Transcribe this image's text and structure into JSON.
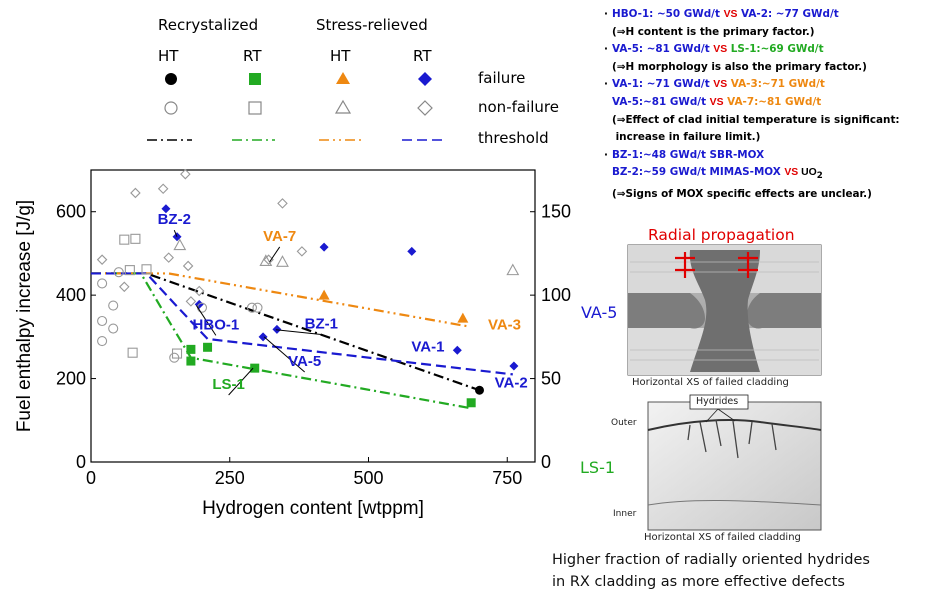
{
  "colors": {
    "black": "#000000",
    "green": "#22aa22",
    "orange": "#ee8811",
    "blue": "#1a1ad0",
    "red": "#e00000",
    "gray_open": "#999999"
  },
  "legend": {
    "group_recrystalized": "Recrystalized",
    "group_stress_relieved": "Stress-relieved",
    "col_ht_1": "HT",
    "col_rt_1": "RT",
    "col_ht_2": "HT",
    "col_rt_2": "RT",
    "row_failure": "failure",
    "row_non_failure": "non-failure",
    "row_threshold": "threshold"
  },
  "chart_data": {
    "type": "scatter",
    "xlabel": "Hydrogen content [wtppm]",
    "ylabel": "Fuel enthalpy increase [J/g]",
    "xlim": [
      0,
      800
    ],
    "ylim": [
      0,
      700
    ],
    "y2lim": [
      0,
      175
    ],
    "xticks": [
      "0",
      "250",
      "500",
      "750"
    ],
    "yticks": [
      "0",
      "200",
      "400",
      "600"
    ],
    "y2ticks": [
      "0",
      "50",
      "100",
      "150"
    ],
    "series": [
      {
        "name": "Recrystalized HT failure",
        "marker": "filled-circle",
        "color": "#000000",
        "points": [
          [
            700,
            172
          ]
        ]
      },
      {
        "name": "Recrystalized RT failure",
        "marker": "filled-square",
        "color": "#22aa22",
        "points": [
          [
            180,
            270
          ],
          [
            180,
            242
          ],
          [
            210,
            275
          ],
          [
            295,
            225
          ],
          [
            685,
            142
          ]
        ]
      },
      {
        "name": "Stress-relieved HT failure",
        "marker": "filled-triangle",
        "color": "#ee8811",
        "points": [
          [
            420,
            400
          ],
          [
            670,
            345
          ]
        ]
      },
      {
        "name": "Stress-relieved RT failure",
        "marker": "filled-diamond",
        "color": "#1a1ad0",
        "points": [
          [
            135,
            607
          ],
          [
            155,
            540
          ],
          [
            195,
            378
          ],
          [
            310,
            300
          ],
          [
            335,
            318
          ],
          [
            420,
            515
          ],
          [
            578,
            505
          ],
          [
            660,
            268
          ],
          [
            762,
            230
          ]
        ]
      },
      {
        "name": "Recrystalized HT non-failure",
        "marker": "open-circle",
        "color": "#999999",
        "points": [
          [
            20,
            428
          ],
          [
            20,
            338
          ],
          [
            20,
            290
          ],
          [
            40,
            375
          ],
          [
            40,
            320
          ],
          [
            50,
            455
          ],
          [
            150,
            250
          ],
          [
            200,
            370
          ],
          [
            290,
            370
          ],
          [
            300,
            370
          ]
        ]
      },
      {
        "name": "Recrystalized RT non-failure",
        "marker": "open-square",
        "color": "#999999",
        "points": [
          [
            60,
            533
          ],
          [
            80,
            535
          ],
          [
            70,
            460
          ],
          [
            100,
            462
          ],
          [
            75,
            262
          ],
          [
            155,
            260
          ]
        ]
      },
      {
        "name": "Stress-relieved HT non-failure",
        "marker": "open-triangle",
        "color": "#999999",
        "points": [
          [
            160,
            520
          ],
          [
            315,
            482
          ],
          [
            345,
            480
          ],
          [
            760,
            460
          ]
        ]
      },
      {
        "name": "Stress-relieved RT non-failure",
        "marker": "open-diamond",
        "color": "#999999",
        "points": [
          [
            80,
            645
          ],
          [
            130,
            655
          ],
          [
            170,
            690
          ],
          [
            140,
            490
          ],
          [
            175,
            470
          ],
          [
            180,
            385
          ],
          [
            195,
            410
          ],
          [
            320,
            485
          ],
          [
            345,
            620
          ],
          [
            380,
            505
          ],
          [
            20,
            485
          ],
          [
            60,
            420
          ]
        ]
      }
    ],
    "thresholds": [
      {
        "name": "Recrystalized HT threshold",
        "color": "#000000",
        "dash": "10 4 2 4",
        "points": [
          [
            0,
            452
          ],
          [
            100,
            452
          ],
          [
            700,
            172
          ]
        ]
      },
      {
        "name": "Recrystalized RT threshold",
        "color": "#22aa22",
        "dash": "10 4 2 4",
        "points": [
          [
            0,
            452
          ],
          [
            90,
            452
          ],
          [
            135,
            350
          ],
          [
            180,
            250
          ],
          [
            680,
            130
          ]
        ]
      },
      {
        "name": "Stress-relieved HT threshold",
        "color": "#ee8811",
        "dash": "10 4 2 4 2 4",
        "points": [
          [
            0,
            452
          ],
          [
            140,
            452
          ],
          [
            680,
            325
          ]
        ]
      },
      {
        "name": "Stress-relieved RT threshold",
        "color": "#1a1ad0",
        "dash": "10 5",
        "points": [
          [
            0,
            452
          ],
          [
            100,
            452
          ],
          [
            150,
            380
          ],
          [
            210,
            295
          ],
          [
            760,
            210
          ]
        ]
      }
    ],
    "annotations": [
      {
        "text": "BZ-2",
        "color": "#1a1ad0",
        "x": 150,
        "y": 570,
        "tx": 155,
        "ty": 540
      },
      {
        "text": "VA-7",
        "color": "#ee8811",
        "x": 340,
        "y": 530,
        "tx": 322,
        "ty": 480
      },
      {
        "text": "HBO-1",
        "color": "#1a1ad0",
        "x": 225,
        "y": 318,
        "tx": 190,
        "ty": 375
      },
      {
        "text": "BZ-1",
        "color": "#1a1ad0",
        "x": 415,
        "y": 320,
        "tx": 333,
        "ty": 317
      },
      {
        "text": "VA-5",
        "color": "#1a1ad0",
        "x": 385,
        "y": 230,
        "tx": 312,
        "ty": 300
      },
      {
        "text": "LS-1",
        "color": "#22aa22",
        "x": 248,
        "y": 175,
        "tx": 292,
        "ty": 225
      },
      {
        "text": "VA-3",
        "color": "#ee8811",
        "x": 745,
        "y": 318,
        "tx": null,
        "ty": null
      },
      {
        "text": "VA-1",
        "color": "#1a1ad0",
        "x": 607,
        "y": 265,
        "tx": null,
        "ty": null
      },
      {
        "text": "VA-2",
        "color": "#1a1ad0",
        "x": 757,
        "y": 178,
        "tx": null,
        "ty": null
      }
    ]
  },
  "notes": [
    {
      "bullet": true,
      "parts": [
        {
          "t": "HBO-1: ~50 GWd/t ",
          "c": "#1a1ad0"
        },
        {
          "t": "VS",
          "c": "#e00000"
        },
        {
          "t": " VA-2: ~77 GWd/t",
          "c": "#1a1ad0"
        }
      ]
    },
    {
      "bullet": false,
      "parts": [
        {
          "t": "(⇒H content is the primary factor.)",
          "c": "#000000"
        }
      ]
    },
    {
      "bullet": true,
      "parts": [
        {
          "t": "VA-5: ~81 GWd/t ",
          "c": "#1a1ad0"
        },
        {
          "t": "VS",
          "c": "#e00000"
        },
        {
          "t": " LS-1:~69 GWd/t",
          "c": "#22aa22"
        }
      ]
    },
    {
      "bullet": false,
      "parts": [
        {
          "t": "(⇒H morphology is also the primary factor.)",
          "c": "#000000"
        }
      ]
    },
    {
      "bullet": true,
      "parts": [
        {
          "t": "VA-1: ~71 GWd/t ",
          "c": "#1a1ad0"
        },
        {
          "t": "VS",
          "c": "#e00000"
        },
        {
          "t": " VA-3:~71 GWd/t",
          "c": "#ee8811"
        }
      ]
    },
    {
      "bullet": false,
      "parts": [
        {
          "t": "VA-5:~81 GWd/t ",
          "c": "#1a1ad0"
        },
        {
          "t": "VS",
          "c": "#e00000"
        },
        {
          "t": " VA-7:~81 GWd/t",
          "c": "#ee8811"
        }
      ]
    },
    {
      "bullet": false,
      "parts": [
        {
          "t": "(⇒Effect of clad initial temperature is significant:",
          "c": "#000000"
        }
      ]
    },
    {
      "bullet": false,
      "parts": [
        {
          "t": " increase in failure limit.)",
          "c": "#000000"
        }
      ]
    },
    {
      "bullet": true,
      "parts": [
        {
          "t": "BZ-1:~48 GWd/t SBR-MOX",
          "c": "#1a1ad0"
        }
      ]
    },
    {
      "bullet": false,
      "parts": [
        {
          "t": "BZ-2:~59 GWd/t MIMAS-MOX ",
          "c": "#1a1ad0"
        },
        {
          "t": "VS",
          "c": "#e00000"
        },
        {
          "t": " UO",
          "c": "#000000"
        },
        {
          "t": "2",
          "c": "#000000",
          "sub": true
        }
      ]
    },
    {
      "bullet": false,
      "parts": [
        {
          "t": "(⇒Signs of MOX specific effects are unclear.)",
          "c": "#000000"
        }
      ]
    }
  ],
  "figures": {
    "radial_title": "Radial propagation",
    "va5_label": "VA-5",
    "va5_caption": "Horizontal XS of failed cladding",
    "ls1_label": "LS-1",
    "ls1_hydrides": "Hydrides",
    "ls1_outer": "Outer",
    "ls1_inner": "Inner",
    "ls1_caption": "Horizontal XS of failed cladding"
  },
  "caption_line1": "Higher fraction of radially oriented hydrides",
  "caption_line2": "in RX cladding as more effective defects"
}
